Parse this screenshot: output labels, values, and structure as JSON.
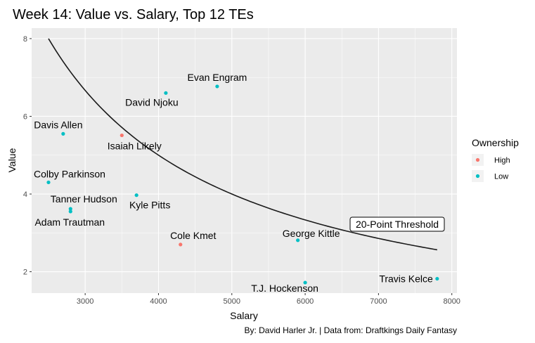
{
  "chart_data": {
    "type": "scatter",
    "title": "Week 14: Value vs. Salary, Top 12 TEs",
    "xlabel": "Salary",
    "ylabel": "Value",
    "xlim": [
      2270,
      8070
    ],
    "ylim": [
      1.45,
      8.27
    ],
    "x_ticks": [
      3000,
      4000,
      5000,
      6000,
      7000,
      8000
    ],
    "y_ticks": [
      2,
      4,
      6,
      8
    ],
    "grid": true,
    "legend": {
      "title": "Ownership",
      "position": "right",
      "entries": [
        {
          "label": "High",
          "color": "#F8766D"
        },
        {
          "label": "Low",
          "color": "#00BFC4"
        }
      ]
    },
    "series": [
      {
        "name": "High",
        "color": "#F8766D"
      },
      {
        "name": "Low",
        "color": "#00BFC4"
      }
    ],
    "points": [
      {
        "label": "Evan Engram",
        "x": 4800,
        "y": 6.77,
        "ownership": "Low"
      },
      {
        "label": "David Njoku",
        "x": 4100,
        "y": 6.6,
        "ownership": "Low"
      },
      {
        "label": "Davis Allen",
        "x": 2700,
        "y": 5.55,
        "ownership": "Low"
      },
      {
        "label": "Isaiah Likely",
        "x": 3500,
        "y": 5.51,
        "ownership": "High"
      },
      {
        "label": "Colby Parkinson",
        "x": 2500,
        "y": 4.3,
        "ownership": "Low"
      },
      {
        "label": "Kyle Pitts",
        "x": 3700,
        "y": 3.97,
        "ownership": "Low"
      },
      {
        "label": "Tanner Hudson",
        "x": 2800,
        "y": 3.62,
        "ownership": "Low"
      },
      {
        "label": "Adam Trautman",
        "x": 2800,
        "y": 3.55,
        "ownership": "Low"
      },
      {
        "label": "Cole Kmet",
        "x": 4300,
        "y": 2.7,
        "ownership": "High"
      },
      {
        "label": "George Kittle",
        "x": 5900,
        "y": 2.81,
        "ownership": "Low"
      },
      {
        "label": "T.J. Hockenson",
        "x": 6000,
        "y": 1.72,
        "ownership": "Low"
      },
      {
        "label": "Travis Kelce",
        "x": 7800,
        "y": 1.82,
        "ownership": "Low"
      }
    ],
    "threshold_points": 20,
    "annotation": "20-Point Threshold",
    "caption": "By: David Harler Jr. | Data from: Draftkings Daily Fantasy"
  }
}
